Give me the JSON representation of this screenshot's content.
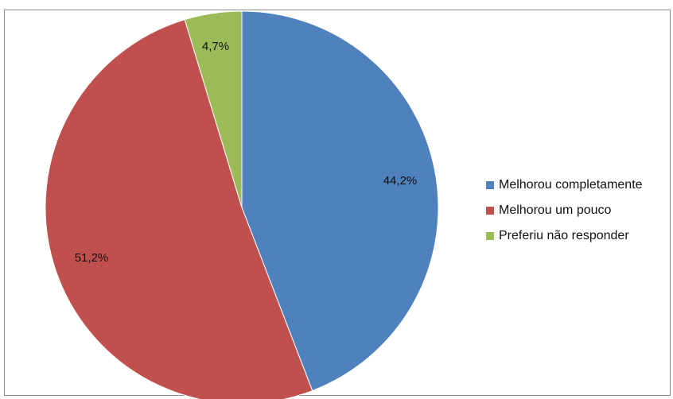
{
  "chart_data": {
    "type": "pie",
    "title": "",
    "slices": [
      {
        "label": "Melhorou completamente",
        "value": 44.2,
        "display": "44,2%",
        "color": "#4F81BD"
      },
      {
        "label": "Melhorou um pouco",
        "value": 51.2,
        "display": "51,2%",
        "color": "#C0504D"
      },
      {
        "label": "Preferiu não responder",
        "value": 4.7,
        "display": "4,7%",
        "color": "#9BBB59"
      }
    ],
    "start_angle_deg": 0,
    "direction": "clockwise",
    "legend_position": "right"
  }
}
